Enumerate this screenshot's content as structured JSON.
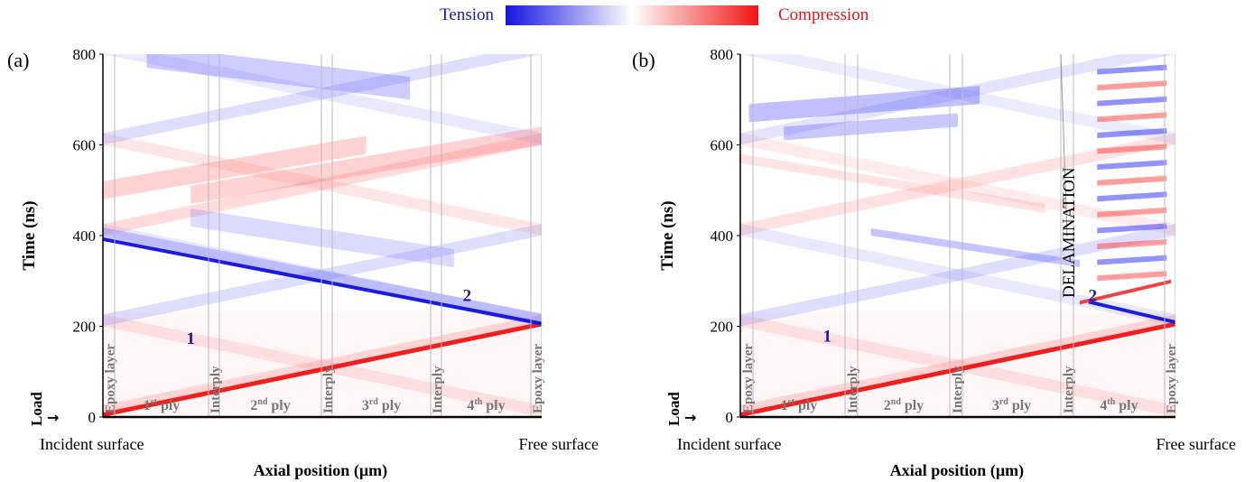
{
  "legend": {
    "tension_label": "Tension",
    "compression_label": "Compression",
    "tension_color": "#1414e0",
    "compression_color": "#f01414"
  },
  "chart_data": [
    {
      "type": "heatmap",
      "panel_label": "(a)",
      "xlabel": "Axial position (µm)",
      "ylabel": "Time (ns)",
      "ylim": [
        0,
        800
      ],
      "yticks": [
        "0",
        "200",
        "400",
        "600",
        "800"
      ],
      "x_left_label": "Incident surface",
      "x_right_label": "Free surface",
      "load_label": "Load",
      "zones": [
        {
          "label": "Epoxy layer",
          "vertical": true
        },
        {
          "label": "1",
          "sup": "st",
          "rest": " ply",
          "vertical": false
        },
        {
          "label": "Interply",
          "vertical": true
        },
        {
          "label": "2",
          "sup": "nd",
          "rest": " ply",
          "vertical": false
        },
        {
          "label": "Interply",
          "vertical": true
        },
        {
          "label": "3",
          "sup": "rd",
          "rest": " ply",
          "vertical": false
        },
        {
          "label": "Interply",
          "vertical": true
        },
        {
          "label": "4",
          "sup": "th",
          "rest": " ply",
          "vertical": false
        },
        {
          "label": "Epoxy layer",
          "vertical": true
        }
      ],
      "markers": [
        {
          "label": "1",
          "position": 0.2,
          "time": 175
        },
        {
          "label": "2",
          "position": 0.83,
          "time": 270
        }
      ],
      "annotation": ""
    },
    {
      "type": "heatmap",
      "panel_label": "(b)",
      "xlabel": "Axial position (µm)",
      "ylabel": "Time (ns)",
      "ylim": [
        0,
        800
      ],
      "yticks": [
        "0",
        "200",
        "400",
        "600",
        "800"
      ],
      "x_left_label": "Incident surface",
      "x_right_label": "Free surface",
      "load_label": "Load",
      "zones": [
        {
          "label": "Epoxy layer",
          "vertical": true
        },
        {
          "label": "1",
          "sup": "st",
          "rest": " ply",
          "vertical": false
        },
        {
          "label": "Interply",
          "vertical": true
        },
        {
          "label": "2",
          "sup": "nd",
          "rest": " ply",
          "vertical": false
        },
        {
          "label": "Interply",
          "vertical": true
        },
        {
          "label": "3",
          "sup": "rd",
          "rest": " ply",
          "vertical": false
        },
        {
          "label": "Interply",
          "vertical": true
        },
        {
          "label": "4",
          "sup": "th",
          "rest": " ply",
          "vertical": false
        },
        {
          "label": "Epoxy layer",
          "vertical": true
        }
      ],
      "markers": [
        {
          "label": "1",
          "position": 0.2,
          "time": 180
        },
        {
          "label": "2",
          "position": 0.81,
          "time": 270
        }
      ],
      "annotation": "DELAMINATION"
    }
  ]
}
